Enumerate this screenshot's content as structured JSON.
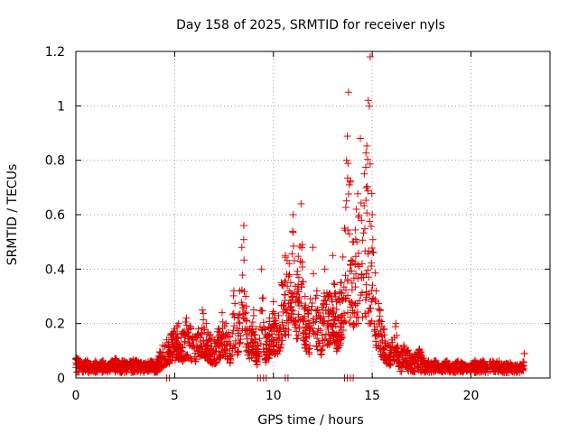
{
  "chart_data": {
    "type": "scatter",
    "title": "Day 158 of 2025, SRMTID for receiver nyls",
    "xlabel": "GPS time / hours",
    "ylabel": "SRMTID / TECUs",
    "xlim": [
      0,
      24
    ],
    "ylim": [
      0,
      1.2
    ],
    "x_ticks": [
      0,
      5,
      10,
      15,
      20
    ],
    "x_tick_labels": [
      "0",
      "5",
      "10",
      "15",
      "20"
    ],
    "y_ticks": [
      0,
      0.2,
      0.4,
      0.6,
      0.8,
      1.0,
      1.2
    ],
    "y_tick_labels": [
      "0",
      "0.2",
      "0.4",
      "0.6",
      "0.8",
      "1",
      "1.2"
    ],
    "grid": true,
    "marker": "+",
    "color": "#e00000",
    "series": [
      {
        "name": "SRMTID",
        "x": [
          0.0,
          0.2,
          0.4,
          0.6,
          0.8,
          1.0,
          1.2,
          1.4,
          1.6,
          1.8,
          2.0,
          2.2,
          2.4,
          2.6,
          2.8,
          3.0,
          3.2,
          3.4,
          3.6,
          3.8,
          4.0,
          4.2,
          4.4,
          4.6,
          4.8,
          5.0,
          5.2,
          5.4,
          5.6,
          5.8,
          6.0,
          6.2,
          6.4,
          6.6,
          6.8,
          7.0,
          7.2,
          7.4,
          7.6,
          7.8,
          8.0,
          8.2,
          8.4,
          8.5,
          8.6,
          8.8,
          9.0,
          9.2,
          9.4,
          9.6,
          9.8,
          10.0,
          10.2,
          10.4,
          10.6,
          10.8,
          11.0,
          11.2,
          11.4,
          11.6,
          11.8,
          12.0,
          12.2,
          12.4,
          12.6,
          12.8,
          13.0,
          13.2,
          13.4,
          13.6,
          13.7,
          13.8,
          13.9,
          14.0,
          14.2,
          14.4,
          14.6,
          14.8,
          14.9,
          15.0,
          15.2,
          15.4,
          15.6,
          15.8,
          16.0,
          16.2,
          16.4,
          16.6,
          16.8,
          17.0,
          17.2,
          17.4,
          17.6,
          17.8,
          18.0,
          18.2,
          18.4,
          18.6,
          18.8,
          19.0,
          19.2,
          19.4,
          19.6,
          19.8,
          20.0,
          20.2,
          20.4,
          20.6,
          20.8,
          21.0,
          21.2,
          21.4,
          21.6,
          21.8,
          22.0,
          22.2,
          22.4,
          22.6,
          22.7
        ],
        "y": [
          0.07,
          0.05,
          0.04,
          0.06,
          0.03,
          0.05,
          0.04,
          0.05,
          0.03,
          0.05,
          0.06,
          0.04,
          0.05,
          0.04,
          0.05,
          0.06,
          0.04,
          0.05,
          0.04,
          0.05,
          0.04,
          0.08,
          0.12,
          0.14,
          0.16,
          0.18,
          0.2,
          0.17,
          0.22,
          0.19,
          0.15,
          0.18,
          0.25,
          0.2,
          0.16,
          0.14,
          0.18,
          0.24,
          0.2,
          0.15,
          0.32,
          0.22,
          0.48,
          0.56,
          0.3,
          0.18,
          0.25,
          0.12,
          0.4,
          0.16,
          0.22,
          0.28,
          0.18,
          0.35,
          0.45,
          0.42,
          0.6,
          0.38,
          0.64,
          0.3,
          0.25,
          0.48,
          0.32,
          0.22,
          0.4,
          0.3,
          0.45,
          0.28,
          0.35,
          0.55,
          0.8,
          1.05,
          0.72,
          0.5,
          0.62,
          0.88,
          0.75,
          1.02,
          1.18,
          0.6,
          0.32,
          0.25,
          0.18,
          0.12,
          0.14,
          0.2,
          0.08,
          0.12,
          0.1,
          0.06,
          0.08,
          0.1,
          0.06,
          0.05,
          0.04,
          0.05,
          0.04,
          0.04,
          0.05,
          0.03,
          0.04,
          0.05,
          0.04,
          0.03,
          0.04,
          0.05,
          0.04,
          0.05,
          0.04,
          0.06,
          0.04,
          0.05,
          0.03,
          0.04,
          0.05,
          0.03,
          0.04,
          0.03,
          0.09
        ]
      }
    ],
    "zero_outliers_x": [
      4.6,
      9.2,
      9.5,
      10.6,
      13.6,
      13.9
    ]
  }
}
